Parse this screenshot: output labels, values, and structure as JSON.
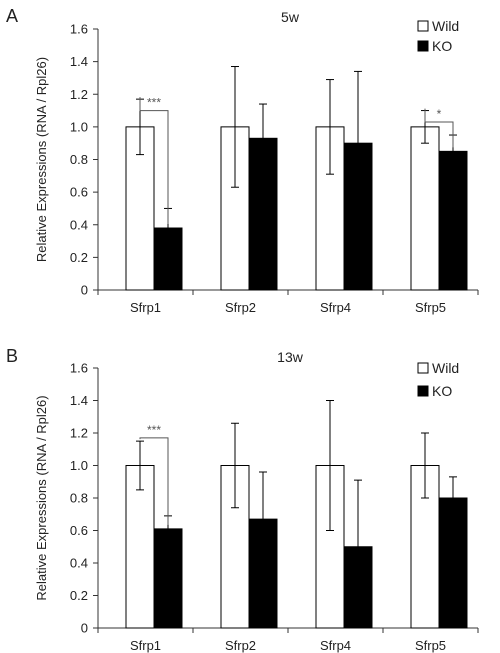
{
  "chart_data": [
    {
      "type": "bar",
      "panel_label": "A",
      "title": "5w",
      "ylabel": "Relative Expressions (RNA / Rpl26)",
      "xlabel": "",
      "ylim": [
        0,
        1.6
      ],
      "yticks": [
        "0",
        "0.2",
        "0.4",
        "0.6",
        "0.8",
        "1.0",
        "1.2",
        "1.4",
        "1.6"
      ],
      "categories": [
        "Sfrp1",
        "Sfrp2",
        "Sfrp4",
        "Sfrp5"
      ],
      "series": [
        {
          "name": "Wild",
          "color": "#ffffff",
          "values": [
            1.0,
            1.0,
            1.0,
            1.0
          ],
          "errors": [
            0.17,
            0.37,
            0.29,
            0.1
          ]
        },
        {
          "name": "KO",
          "color": "#000000",
          "values": [
            0.38,
            0.93,
            0.9,
            0.85
          ],
          "errors": [
            0.12,
            0.21,
            0.44,
            0.1
          ]
        }
      ],
      "significance": [
        {
          "category_index": 0,
          "label": "***",
          "line_y": 1.1
        },
        {
          "category_index": 3,
          "label": "*",
          "line_y": 1.03
        }
      ],
      "legend_position": "top-right",
      "grid": false
    },
    {
      "type": "bar",
      "panel_label": "B",
      "title": "13w",
      "ylabel": "Relative Expressions (RNA / Rpl26)",
      "xlabel": "",
      "ylim": [
        0,
        1.6
      ],
      "yticks": [
        "0",
        "0.2",
        "0.4",
        "0.6",
        "0.8",
        "1.0",
        "1.2",
        "1.4",
        "1.6"
      ],
      "categories": [
        "Sfrp1",
        "Sfrp2",
        "Sfrp4",
        "Sfrp5"
      ],
      "series": [
        {
          "name": "Wild",
          "color": "#ffffff",
          "values": [
            1.0,
            1.0,
            1.0,
            1.0
          ],
          "errors": [
            0.15,
            0.26,
            0.4,
            0.2
          ]
        },
        {
          "name": "KO",
          "color": "#000000",
          "values": [
            0.61,
            0.67,
            0.5,
            0.8
          ],
          "errors": [
            0.08,
            0.29,
            0.41,
            0.13
          ]
        }
      ],
      "significance": [
        {
          "category_index": 0,
          "label": "***",
          "line_y": 1.17
        }
      ],
      "legend_position": "top-right",
      "grid": false
    }
  ]
}
